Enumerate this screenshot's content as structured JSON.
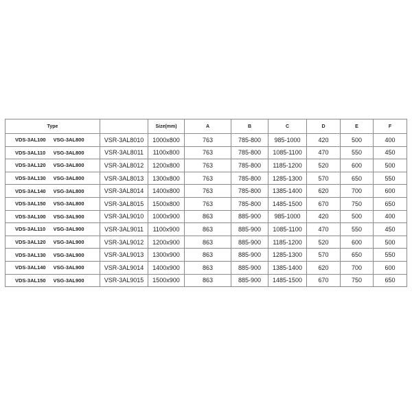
{
  "headers": {
    "type": "Type",
    "model": "",
    "size": "Size(mm)",
    "a": "A",
    "b": "B",
    "c": "C",
    "d": "D",
    "e": "E",
    "f": "F"
  },
  "rows": [
    [
      "VDS-3AL100",
      "VSG-3AL800",
      "VSR-3AL8010",
      "1000x800",
      "763",
      "785-800",
      "985-1000",
      "420",
      "500",
      "400"
    ],
    [
      "VDS-3AL110",
      "VSG-3AL800",
      "VSR-3AL8011",
      "1100x800",
      "763",
      "785-800",
      "1085-1100",
      "470",
      "550",
      "450"
    ],
    [
      "VDS-3AL120",
      "VSG-3AL800",
      "VSR-3AL8012",
      "1200x800",
      "763",
      "785-800",
      "1185-1200",
      "520",
      "600",
      "500"
    ],
    [
      "VDS-3AL130",
      "VSG-3AL800",
      "VSR-3AL8013",
      "1300x800",
      "763",
      "785-800",
      "1285-1300",
      "570",
      "650",
      "550"
    ],
    [
      "VDS-3AL140",
      "VSG-3AL800",
      "VSR-3AL8014",
      "1400x800",
      "763",
      "785-800",
      "1385-1400",
      "620",
      "700",
      "600"
    ],
    [
      "VDS-3AL150",
      "VSG-3AL800",
      "VSR-3AL8015",
      "1500x800",
      "763",
      "785-800",
      "1485-1500",
      "670",
      "750",
      "650"
    ],
    [
      "VDS-3AL100",
      "VSG-3AL900",
      "VSR-3AL9010",
      "1000x900",
      "863",
      "885-900",
      "985-1000",
      "420",
      "500",
      "400"
    ],
    [
      "VDS-3AL110",
      "VSG-3AL900",
      "VSR-3AL9011",
      "1100x900",
      "863",
      "885-900",
      "1085-1100",
      "470",
      "550",
      "450"
    ],
    [
      "VDS-3AL120",
      "VSG-3AL900",
      "VSR-3AL9012",
      "1200x900",
      "863",
      "885-900",
      "1185-1200",
      "520",
      "600",
      "500"
    ],
    [
      "VDS-3AL130",
      "VSG-3AL900",
      "VSR-3AL9013",
      "1300x900",
      "863",
      "885-900",
      "1285-1300",
      "570",
      "650",
      "550"
    ],
    [
      "VDS-3AL140",
      "VSG-3AL900",
      "VSR-3AL9014",
      "1400x900",
      "863",
      "885-900",
      "1385-1400",
      "620",
      "700",
      "600"
    ],
    [
      "VDS-3AL150",
      "VSG-3AL900",
      "VSR-3AL9015",
      "1500x900",
      "863",
      "885-900",
      "1485-1500",
      "670",
      "750",
      "650"
    ]
  ]
}
